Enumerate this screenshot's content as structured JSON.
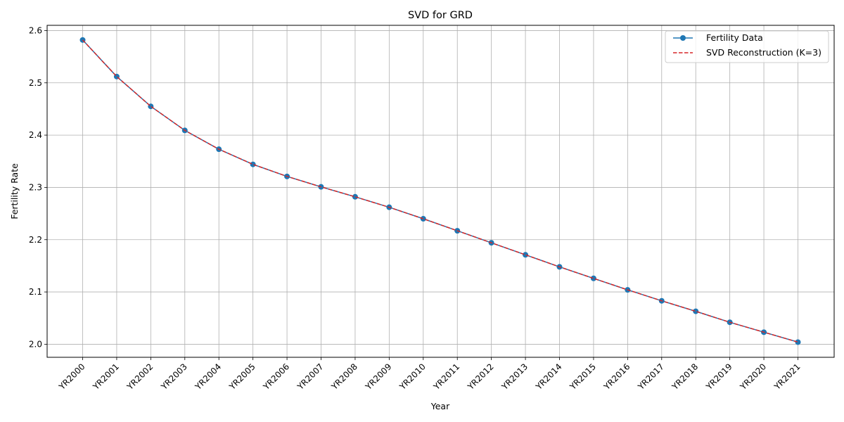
{
  "chart_data": {
    "type": "line",
    "title": "SVD for GRD",
    "xlabel": "Year",
    "ylabel": "Fertility Rate",
    "categories": [
      "YR2000",
      "YR2001",
      "YR2002",
      "YR2003",
      "YR2004",
      "YR2005",
      "YR2006",
      "YR2007",
      "YR2008",
      "YR2009",
      "YR2010",
      "YR2011",
      "YR2012",
      "YR2013",
      "YR2014",
      "YR2015",
      "YR2016",
      "YR2017",
      "YR2018",
      "YR2019",
      "YR2020",
      "YR2021"
    ],
    "ylim": [
      1.975,
      2.61
    ],
    "yticks": [
      "2.0",
      "2.1",
      "2.2",
      "2.3",
      "2.4",
      "2.5",
      "2.6"
    ],
    "grid": true,
    "legend_position": "top-right",
    "series": [
      {
        "name": "Fertility Data",
        "color": "#1f77b4",
        "style": "solid-with-circle-markers",
        "values": [
          2.582,
          2.512,
          2.455,
          2.409,
          2.373,
          2.344,
          2.321,
          2.301,
          2.282,
          2.262,
          2.24,
          2.217,
          2.194,
          2.171,
          2.148,
          2.126,
          2.104,
          2.083,
          2.063,
          2.042,
          2.023,
          2.004
        ]
      },
      {
        "name": "SVD Reconstruction (K=3)",
        "color": "#d62728",
        "style": "dashed",
        "values": [
          2.582,
          2.512,
          2.455,
          2.409,
          2.373,
          2.344,
          2.321,
          2.301,
          2.282,
          2.262,
          2.24,
          2.217,
          2.194,
          2.171,
          2.148,
          2.126,
          2.104,
          2.083,
          2.063,
          2.042,
          2.023,
          2.004
        ]
      }
    ]
  }
}
